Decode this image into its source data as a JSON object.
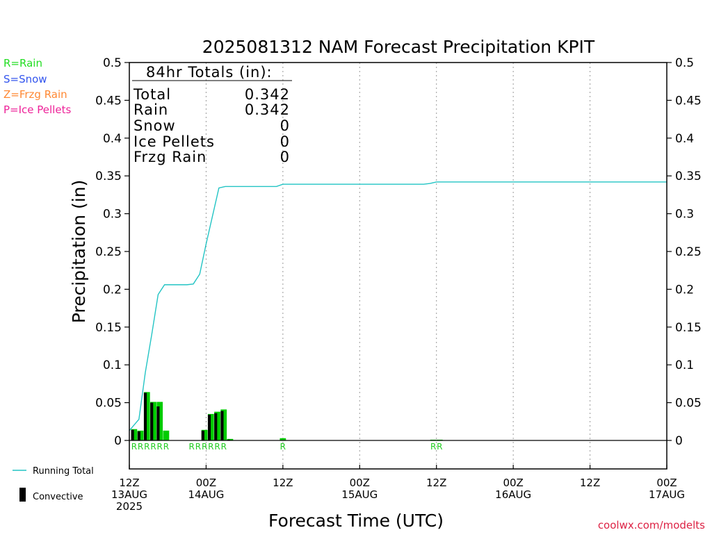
{
  "chart_data": {
    "type": "bar",
    "title": "2025081312 NAM Forecast Precipitation KPIT",
    "xlabel": "Forecast Time (UTC)",
    "ylabel": "Precipitation (in)",
    "ylim": [
      0,
      0.5
    ],
    "xlim_hours": [
      0,
      84
    ],
    "y_ticks": [
      "0",
      "0.05",
      "0.1",
      "0.15",
      "0.2",
      "0.25",
      "0.3",
      "0.35",
      "0.4",
      "0.45",
      "0.5"
    ],
    "x_ticks": [
      {
        "hour": 0,
        "lines": [
          "12Z",
          "13AUG",
          "2025"
        ]
      },
      {
        "hour": 12,
        "lines": [
          "00Z",
          "14AUG"
        ]
      },
      {
        "hour": 24,
        "lines": [
          "12Z"
        ]
      },
      {
        "hour": 36,
        "lines": [
          "00Z",
          "15AUG"
        ]
      },
      {
        "hour": 48,
        "lines": [
          "12Z"
        ]
      },
      {
        "hour": 60,
        "lines": [
          "00Z",
          "16AUG"
        ]
      },
      {
        "hour": 72,
        "lines": [
          "12Z"
        ]
      },
      {
        "hour": 84,
        "lines": [
          "00Z",
          "17AUG"
        ]
      }
    ],
    "grid": "vertical dotted every 12 hours",
    "precip_bars": [
      {
        "hour": 0.75,
        "value": 0.015,
        "convective": 0.014
      },
      {
        "hour": 1.75,
        "value": 0.013,
        "convective": 0.012
      },
      {
        "hour": 2.75,
        "value": 0.064,
        "convective": 0.063
      },
      {
        "hour": 3.75,
        "value": 0.051,
        "convective": 0.05
      },
      {
        "hour": 4.75,
        "value": 0.051,
        "convective": 0.045
      },
      {
        "hour": 5.75,
        "value": 0.013,
        "convective": 0.0
      },
      {
        "hour": 11.75,
        "value": 0.014,
        "convective": 0.013
      },
      {
        "hour": 12.75,
        "value": 0.035,
        "convective": 0.034
      },
      {
        "hour": 13.75,
        "value": 0.038,
        "convective": 0.036
      },
      {
        "hour": 14.75,
        "value": 0.041,
        "convective": 0.039
      },
      {
        "hour": 15.75,
        "value": 0.002,
        "convective": 0.001
      },
      {
        "hour": 24.0,
        "value": 0.003,
        "convective": 0.0
      },
      {
        "hour": 47.5,
        "value": 0.001,
        "convective": 0.0
      },
      {
        "hour": 48.5,
        "value": 0.001,
        "convective": 0.0
      }
    ],
    "running_total": {
      "name": "Running Total",
      "points": [
        [
          0,
          0.013
        ],
        [
          1.5,
          0.028
        ],
        [
          2.5,
          0.09
        ],
        [
          3.5,
          0.14
        ],
        [
          4.5,
          0.193
        ],
        [
          5.5,
          0.206
        ],
        [
          9,
          0.206
        ],
        [
          10,
          0.207
        ],
        [
          11,
          0.22
        ],
        [
          12,
          0.26
        ],
        [
          14,
          0.334
        ],
        [
          15,
          0.336
        ],
        [
          20,
          0.336
        ],
        [
          23,
          0.336
        ],
        [
          24,
          0.339
        ],
        [
          46,
          0.339
        ],
        [
          47,
          0.34
        ],
        [
          48,
          0.342
        ],
        [
          84,
          0.342
        ]
      ]
    },
    "ptype_labels": [
      {
        "hour": 0.75,
        "text": "R"
      },
      {
        "hour": 1.75,
        "text": "R"
      },
      {
        "hour": 2.75,
        "text": "R"
      },
      {
        "hour": 3.75,
        "text": "R"
      },
      {
        "hour": 4.75,
        "text": "R"
      },
      {
        "hour": 5.75,
        "text": "R"
      },
      {
        "hour": 9.75,
        "text": "R"
      },
      {
        "hour": 10.75,
        "text": "R"
      },
      {
        "hour": 11.75,
        "text": "R"
      },
      {
        "hour": 12.75,
        "text": "R"
      },
      {
        "hour": 13.75,
        "text": "R"
      },
      {
        "hour": 14.75,
        "text": "R"
      },
      {
        "hour": 24.0,
        "text": "R"
      },
      {
        "hour": 47.5,
        "text": "R"
      },
      {
        "hour": 48.5,
        "text": "R"
      }
    ],
    "totals_box": {
      "heading": "84hr Totals (in):",
      "rows": [
        {
          "label": "Total",
          "value": "0.342"
        },
        {
          "label": "Rain",
          "value": "0.342"
        },
        {
          "label": "Snow",
          "value": "0"
        },
        {
          "label": "Ice Pellets",
          "value": "0"
        },
        {
          "label": "Frzg Rain",
          "value": "0"
        }
      ]
    },
    "ptype_legend": [
      {
        "text": "R=Rain",
        "color": "#22dd22"
      },
      {
        "text": "S=Snow",
        "color": "#3355ee"
      },
      {
        "text": "Z=Frzg Rain",
        "color": "#ff8833"
      },
      {
        "text": "P=Ice Pellets",
        "color": "#ee2299"
      }
    ],
    "series_legend": {
      "running_total": "Running Total",
      "convective": "Convective"
    },
    "credit": "coolwx.com/modelts",
    "colors": {
      "rain": "#00cc00",
      "convective": "#000000",
      "running_total": "#22c4c4",
      "ptype_label": "#22cc22",
      "credit": "#dd2244"
    }
  }
}
